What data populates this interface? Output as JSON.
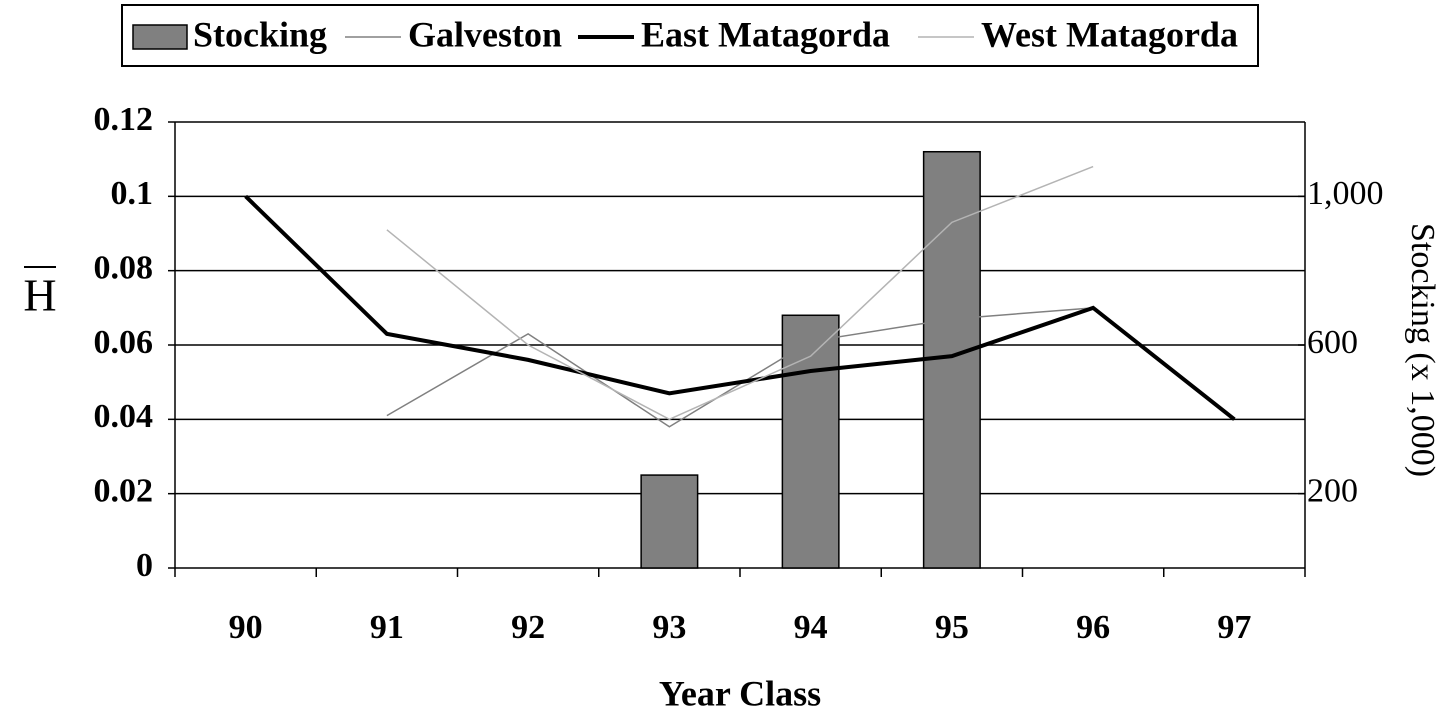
{
  "chart_data": {
    "type": "bar",
    "x_label": "Year Class",
    "y_label": "H",
    "y2_label": "Stocking (x 1,000)",
    "categories": [
      "90",
      "91",
      "92",
      "93",
      "94",
      "95",
      "96",
      "97"
    ],
    "ylim": [
      0,
      0.12
    ],
    "yticks": [
      0,
      0.02,
      0.04,
      0.06,
      0.08,
      0.1,
      0.12
    ],
    "y2lim": [
      0,
      1200
    ],
    "y2ticks": [
      200,
      600,
      {
        "value": 1000,
        "label": "1,000"
      }
    ],
    "grid": true,
    "legend": "top",
    "series": [
      {
        "name": "Stocking",
        "type": "bar",
        "axis": "y2",
        "color": "#808080",
        "values": [
          null,
          null,
          null,
          250,
          680,
          1120,
          null,
          null
        ]
      },
      {
        "name": "Galveston",
        "type": "line",
        "color": "#808080",
        "width": 1.5,
        "values": [
          null,
          0.041,
          0.063,
          0.038,
          0.061,
          0.067,
          0.07,
          null
        ]
      },
      {
        "name": "East Matagorda",
        "type": "line",
        "color": "#000000",
        "width": 4,
        "values": [
          0.1,
          0.063,
          0.056,
          0.047,
          0.053,
          0.057,
          0.07,
          0.04
        ]
      },
      {
        "name": "West Matagorda",
        "type": "line",
        "color": "#b4b4b4",
        "width": 1.5,
        "values": [
          null,
          0.091,
          0.06,
          0.04,
          0.057,
          0.093,
          0.108,
          null
        ]
      }
    ]
  }
}
